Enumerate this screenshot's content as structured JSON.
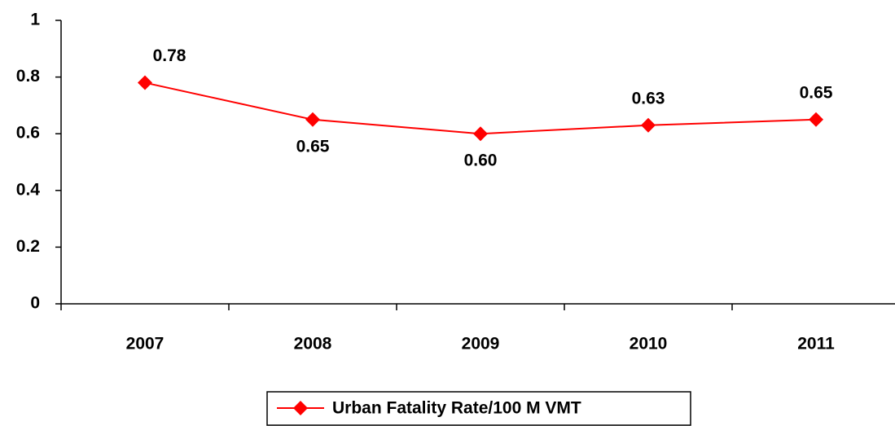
{
  "chart_data": {
    "type": "line",
    "categories": [
      "2007",
      "2008",
      "2009",
      "2010",
      "2011"
    ],
    "series": [
      {
        "name": "Urban Fatality Rate/100 M VMT",
        "color": "#ff0000",
        "values": [
          0.78,
          0.65,
          0.6,
          0.63,
          0.65
        ],
        "value_labels": [
          "0.78",
          "0.65",
          "0.60",
          "0.63",
          "0.65"
        ]
      }
    ],
    "ylim": [
      0,
      1
    ],
    "yticks": [
      0,
      0.2,
      0.4,
      0.6,
      0.8,
      1
    ],
    "legend": "bottom"
  }
}
